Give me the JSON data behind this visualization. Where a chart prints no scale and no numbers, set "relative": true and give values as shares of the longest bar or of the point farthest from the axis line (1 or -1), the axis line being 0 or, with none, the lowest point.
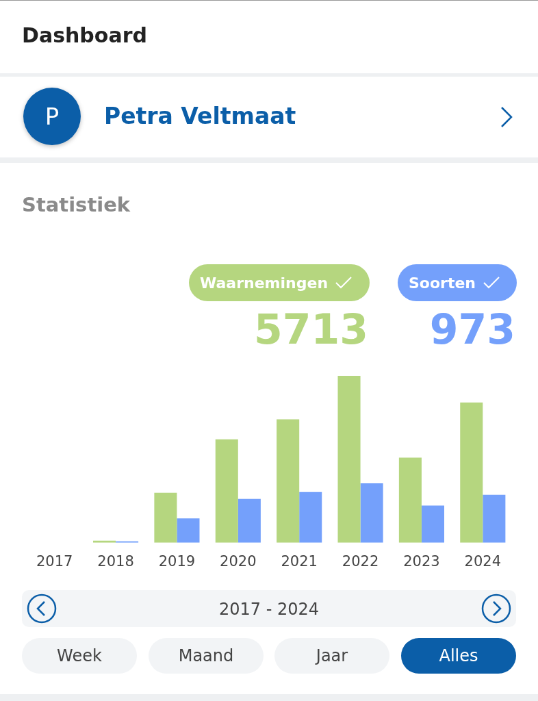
{
  "chart_data": {
    "type": "bar",
    "title": "Statistiek",
    "relative": true,
    "legend": "top right",
    "grid": false,
    "categories": [
      "2017",
      "2018",
      "2019",
      "2020",
      "2021",
      "2022",
      "2023",
      "2024"
    ],
    "series": [
      {
        "name": "Waarnemingen",
        "color": "#b5d67f",
        "values": [
          null,
          0.012,
          0.3,
          0.62,
          0.74,
          1,
          0.51,
          0.84
        ]
      },
      {
        "name": "Soorten",
        "color": "#74a0fb",
        "values": [
          null,
          0.008,
          0.146,
          0.263,
          0.304,
          0.356,
          0.223,
          0.287
        ]
      }
    ],
    "annotations": [
      "Dashboard",
      "P",
      "Petra Veltmaat",
      "5713",
      "973",
      "2017 - 2024",
      "Week",
      "Maand",
      "Jaar",
      "Alles"
    ]
  }
}
